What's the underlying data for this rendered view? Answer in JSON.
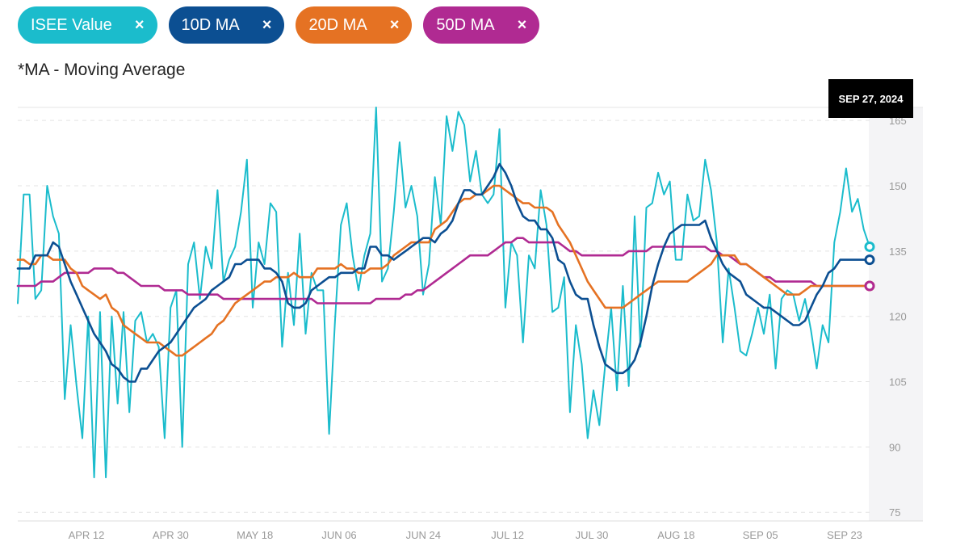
{
  "legend": {
    "isee": {
      "label": "ISEE Value",
      "close": "×",
      "color": "#1bbccc"
    },
    "ma10": {
      "label": "10D MA",
      "close": "×",
      "color": "#0c4f92"
    },
    "ma20": {
      "label": "20D MA",
      "close": "×",
      "color": "#e57223"
    },
    "ma50": {
      "label": "50D MA",
      "close": "×",
      "color": "#b02a92"
    }
  },
  "note": "*MA - Moving Average",
  "tooltip": {
    "date": "SEP 27, 2024"
  },
  "chart_data": {
    "type": "line",
    "x_ticks": [
      "APR 12",
      "APR 30",
      "MAY 18",
      "JUN 06",
      "JUN 24",
      "JUL 12",
      "JUL 30",
      "AUG 18",
      "SEP 05",
      "SEP 23"
    ],
    "y_ticks": [
      75,
      90,
      105,
      120,
      135,
      150,
      165
    ],
    "ylim": [
      73,
      168
    ],
    "grid": "horizontal dashed",
    "series": [
      {
        "name": "ISEE Value",
        "color": "#1bbccc",
        "values": [
          123,
          148,
          148,
          124,
          126,
          150,
          143,
          139,
          101,
          118,
          104,
          92,
          120,
          83,
          121,
          83,
          120,
          100,
          121,
          98,
          119,
          121,
          114,
          116,
          113,
          92,
          122,
          126,
          90,
          132,
          137,
          124,
          136,
          131,
          149,
          128,
          133,
          136,
          144,
          156,
          122,
          137,
          132,
          146,
          144,
          113,
          130,
          118,
          139,
          116,
          130,
          126,
          126,
          93,
          119,
          141,
          146,
          134,
          126,
          134,
          139,
          168,
          128,
          131,
          144,
          160,
          145,
          150,
          143,
          125,
          132,
          152,
          141,
          166,
          158,
          167,
          164,
          151,
          158,
          148,
          146,
          148,
          163,
          122,
          137,
          134,
          114,
          134,
          131,
          149,
          141,
          121,
          122,
          129,
          98,
          118,
          109,
          92,
          103,
          95,
          109,
          122,
          103,
          127,
          104,
          143,
          113,
          145,
          146,
          153,
          148,
          151,
          133,
          133,
          148,
          142,
          143,
          156,
          149,
          137,
          114,
          131,
          122,
          112,
          111,
          116,
          122,
          116,
          125,
          108,
          124,
          126,
          125,
          119,
          124,
          117,
          108,
          118,
          114,
          137,
          144,
          154,
          144,
          147,
          140,
          136
        ]
      },
      {
        "name": "10D MA",
        "color": "#0c4f92",
        "values": [
          131,
          131,
          131,
          134,
          134,
          134,
          137,
          136,
          132,
          128,
          125,
          122,
          119,
          116,
          114,
          112,
          109,
          108,
          106,
          105,
          105,
          108,
          108,
          110,
          112,
          113,
          114,
          116,
          118,
          120,
          122,
          123,
          124,
          126,
          127,
          128,
          129,
          132,
          132,
          133,
          133,
          133,
          131,
          131,
          130,
          128,
          123,
          122,
          122,
          123,
          126,
          127,
          128,
          129,
          129,
          130,
          130,
          130,
          131,
          131,
          136,
          136,
          134,
          134,
          133,
          134,
          135,
          136,
          137,
          138,
          138,
          137,
          139,
          140,
          142,
          146,
          149,
          149,
          148,
          148,
          150,
          152,
          155,
          153,
          150,
          146,
          143,
          142,
          142,
          140,
          140,
          138,
          133,
          132,
          128,
          125,
          124,
          124,
          118,
          113,
          109,
          108,
          107,
          107,
          108,
          110,
          114,
          120,
          127,
          132,
          136,
          139,
          140,
          141,
          141,
          141,
          141,
          142,
          138,
          135,
          132,
          130,
          129,
          128,
          125,
          124,
          123,
          122,
          122,
          121,
          120,
          119,
          118,
          118,
          119,
          122,
          125,
          127,
          130,
          131,
          133,
          133,
          133,
          133,
          133,
          133
        ]
      },
      {
        "name": "20D MA",
        "color": "#e57223",
        "values": [
          133,
          133,
          132,
          132,
          134,
          134,
          133,
          133,
          133,
          131,
          130,
          127,
          126,
          125,
          124,
          125,
          122,
          121,
          118,
          117,
          116,
          115,
          114,
          114,
          114,
          113,
          112,
          111,
          111,
          112,
          113,
          114,
          115,
          116,
          118,
          119,
          121,
          123,
          124,
          125,
          126,
          127,
          128,
          128,
          129,
          129,
          129,
          130,
          129,
          129,
          129,
          131,
          131,
          131,
          131,
          132,
          131,
          131,
          130,
          130,
          131,
          131,
          131,
          132,
          134,
          135,
          136,
          137,
          137,
          137,
          137,
          140,
          141,
          142,
          144,
          146,
          147,
          147,
          148,
          148,
          149,
          150,
          150,
          149,
          148,
          147,
          146,
          146,
          145,
          145,
          145,
          144,
          141,
          139,
          137,
          134,
          131,
          128,
          126,
          124,
          122,
          122,
          122,
          122,
          123,
          124,
          125,
          126,
          127,
          128,
          128,
          128,
          128,
          128,
          128,
          129,
          130,
          131,
          132,
          134,
          134,
          134,
          134,
          132,
          132,
          131,
          130,
          129,
          128,
          127,
          126,
          125,
          125,
          125,
          126,
          127,
          127,
          127,
          127,
          127,
          127,
          127,
          127,
          127,
          127,
          127
        ]
      },
      {
        "name": "50D MA",
        "color": "#b02a92",
        "values": [
          127,
          127,
          127,
          127,
          128,
          128,
          128,
          129,
          130,
          130,
          130,
          130,
          130,
          131,
          131,
          131,
          131,
          130,
          130,
          129,
          128,
          127,
          127,
          127,
          127,
          126,
          126,
          126,
          126,
          125,
          125,
          125,
          125,
          125,
          125,
          124,
          124,
          124,
          124,
          124,
          124,
          124,
          124,
          124,
          124,
          124,
          124,
          124,
          124,
          124,
          124,
          123,
          123,
          123,
          123,
          123,
          123,
          123,
          123,
          123,
          123,
          124,
          124,
          124,
          124,
          124,
          125,
          125,
          126,
          126,
          127,
          128,
          129,
          130,
          131,
          132,
          133,
          134,
          134,
          134,
          134,
          135,
          136,
          137,
          137,
          138,
          138,
          137,
          137,
          137,
          137,
          137,
          137,
          136,
          135,
          135,
          134,
          134,
          134,
          134,
          134,
          134,
          134,
          134,
          135,
          135,
          135,
          135,
          136,
          136,
          136,
          136,
          136,
          136,
          136,
          136,
          136,
          136,
          135,
          135,
          134,
          134,
          133,
          132,
          132,
          131,
          130,
          129,
          129,
          128,
          128,
          128,
          128,
          128,
          128,
          128,
          127,
          127,
          127,
          127,
          127,
          127,
          127,
          127,
          127,
          127
        ]
      }
    ]
  }
}
